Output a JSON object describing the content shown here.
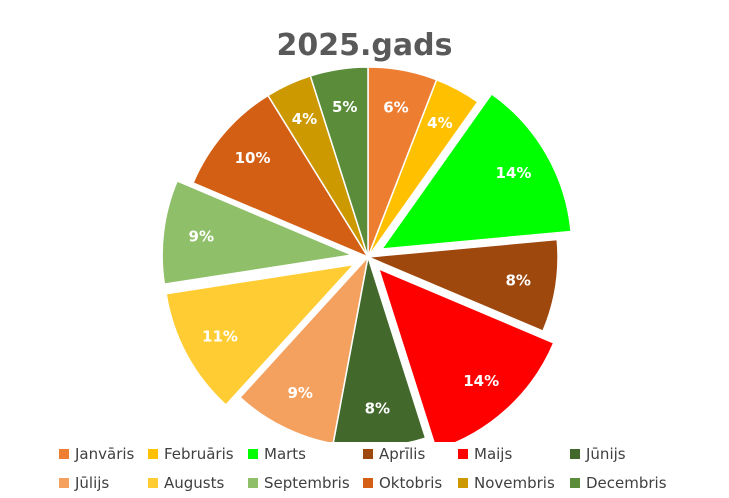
{
  "chart_data": {
    "type": "pie",
    "title": "2025.gads",
    "series": [
      {
        "label": "Janvāris",
        "value": 6,
        "display": "6%",
        "color": "#ED7D31"
      },
      {
        "label": "Februāris",
        "value": 4,
        "display": "4%",
        "color": "#FFC000"
      },
      {
        "label": "Marts",
        "value": 14,
        "display": "14%",
        "color": "#00FF00"
      },
      {
        "label": "Aprīlis",
        "value": 8,
        "display": "8%",
        "color": "#9E480E"
      },
      {
        "label": "Maijs",
        "value": 14,
        "display": "14%",
        "color": "#FF0000"
      },
      {
        "label": "Jūnijs",
        "value": 8,
        "display": "8%",
        "color": "#43682B"
      },
      {
        "label": "Jūlijs",
        "value": 9,
        "display": "9%",
        "color": "#F4A15F"
      },
      {
        "label": "Augusts",
        "value": 11,
        "display": "11%",
        "color": "#FFCC33"
      },
      {
        "label": "Septembris",
        "value": 9,
        "display": "9%",
        "color": "#8FBF69"
      },
      {
        "label": "Oktobris",
        "value": 10,
        "display": "10%",
        "color": "#D35F14"
      },
      {
        "label": "Novembris",
        "value": 4,
        "display": "4%",
        "color": "#CC9A00"
      },
      {
        "label": "Decembris",
        "value": 5,
        "display": "5%",
        "color": "#5A8C3A"
      }
    ],
    "exploded": [
      "Marts",
      "Maijs",
      "Augusts",
      "Septembris"
    ],
    "legend_position": "bottom",
    "label_color": "#ffffff"
  }
}
